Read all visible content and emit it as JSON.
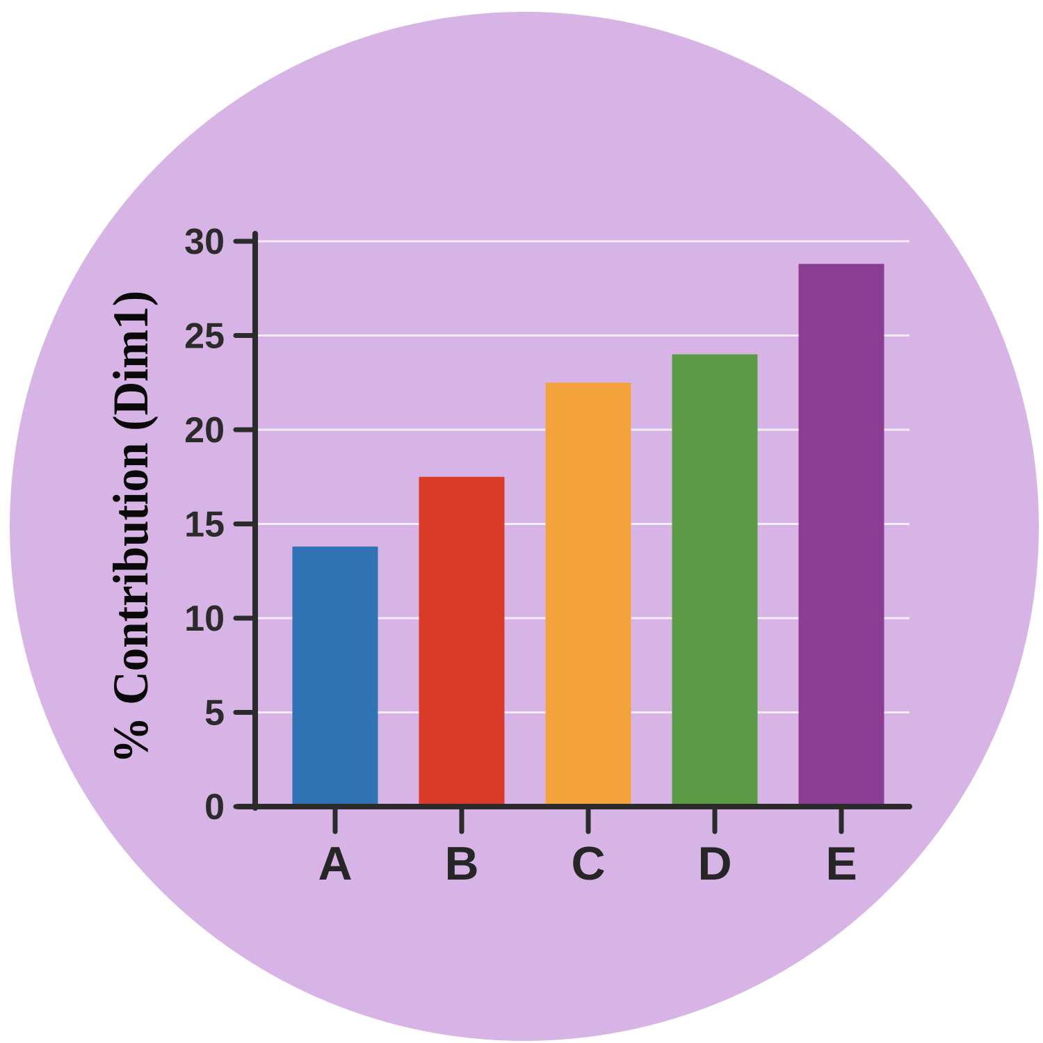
{
  "background": {
    "page_color": "#ffffff",
    "circle_color": "#D8B4E6"
  },
  "chart_data": {
    "type": "bar",
    "categories": [
      "A",
      "B",
      "C",
      "D",
      "E"
    ],
    "values": [
      13.8,
      17.5,
      22.5,
      24.0,
      28.8
    ],
    "bar_colors": [
      "#2F73B5",
      "#D93B2B",
      "#F2A33C",
      "#5C9C46",
      "#8B3C93"
    ],
    "title": "",
    "xlabel": "",
    "ylabel": "% Contribution (Dim1)",
    "ylim": [
      0,
      30
    ],
    "yticks": [
      0,
      5,
      10,
      15,
      20,
      25,
      30
    ],
    "grid": true,
    "gridline_color": "#F3EDF8",
    "axis_color": "#2B2B2B",
    "tick_label_color": "#2b2b2b",
    "legend_position": "none"
  }
}
